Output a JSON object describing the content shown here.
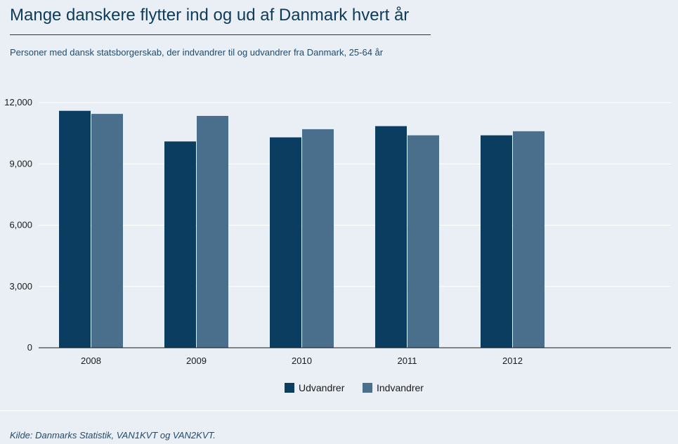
{
  "title": "Mange danskere flytter ind og ud af Danmark hvert år",
  "subtitle": "Personer med dansk statsborgerskab, der indvandrer til og udvandrer fra Danmark, 25-64 år",
  "source": "Kilde: Danmarks Statistik, VAN1KVT og VAN2KVT.",
  "colors": {
    "udvandrer": "#0b3d61",
    "indvandrer": "#4a6f8c",
    "background": "#e9eff5",
    "text": "#0e3a5c"
  },
  "chart_data": {
    "type": "bar",
    "categories": [
      "2008",
      "2009",
      "2010",
      "2011",
      "2012"
    ],
    "series": [
      {
        "name": "Udvandrer",
        "values": [
          11600,
          10100,
          10300,
          10850,
          10400
        ]
      },
      {
        "name": "Indvandrer",
        "values": [
          11450,
          11350,
          10700,
          10400,
          10600
        ]
      }
    ],
    "yticks": [
      "0",
      "3,000",
      "6,000",
      "9,000",
      "12,000"
    ],
    "ylim": [
      0,
      12000
    ],
    "grid": true,
    "legend": "bottom-center"
  }
}
